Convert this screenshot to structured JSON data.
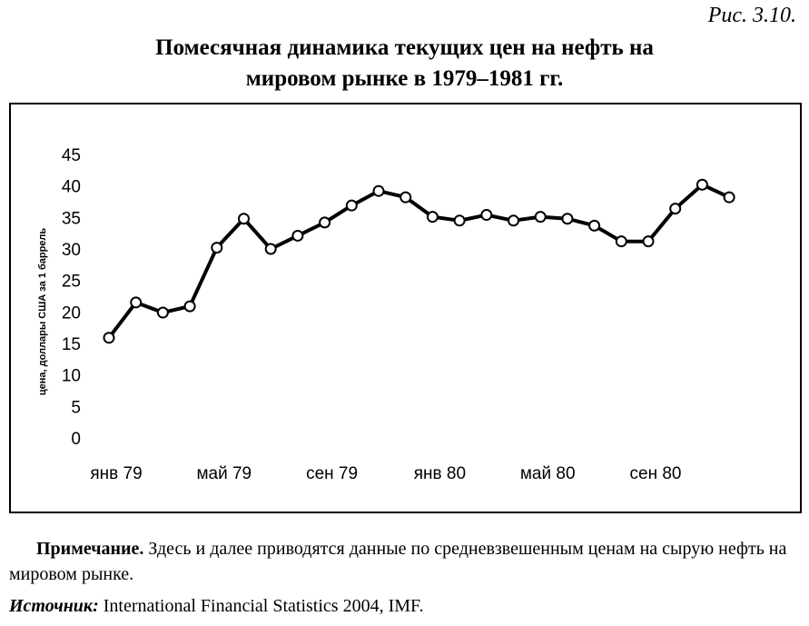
{
  "figure_label": "Рис. 3.10.",
  "title_line1": "Помесячная динамика текущих цен на нефть на",
  "title_line2": "мировом рынке в 1979–1981 гг.",
  "note_label": "Примечание.",
  "note_text": " Здесь и далее приводятся данные по средневзвешенным ценам на сырую нефть на мировом рынке.",
  "source_label": "Источник:",
  "source_text": " International Financial Statistics 2004, IMF.",
  "chart_data": {
    "type": "line",
    "title": "Помесячная динамика текущих цен на нефть на мировом рынке в 1979–1981 гг.",
    "xlabel": "",
    "ylabel": "цена, доллары США за 1 баррель",
    "ylim": [
      0,
      45
    ],
    "yticks": [
      0,
      5,
      10,
      15,
      20,
      25,
      30,
      35,
      40,
      45
    ],
    "xtick_labels": [
      "янв 79",
      "май 79",
      "сен 79",
      "янв 80",
      "май 80",
      "сен 80"
    ],
    "x": [
      "янв 79",
      "фев 79",
      "мар 79",
      "апр 79",
      "май 79",
      "июн 79",
      "июл 79",
      "авг 79",
      "сен 79",
      "окт 79",
      "ноя 79",
      "дек 79",
      "янв 80",
      "фев 80",
      "мар 80",
      "апр 80",
      "май 80",
      "июн 80",
      "июл 80",
      "авг 80",
      "сен 80",
      "окт 80",
      "ноя 80",
      "дек 80"
    ],
    "values": [
      15.9,
      21.5,
      19.9,
      20.9,
      30.2,
      34.8,
      30.0,
      32.1,
      34.2,
      36.9,
      39.2,
      38.2,
      35.1,
      34.5,
      35.4,
      34.5,
      35.1,
      34.8,
      33.7,
      31.2,
      31.2,
      36.4,
      40.2,
      38.2
    ],
    "grid": false,
    "legend": "none"
  }
}
